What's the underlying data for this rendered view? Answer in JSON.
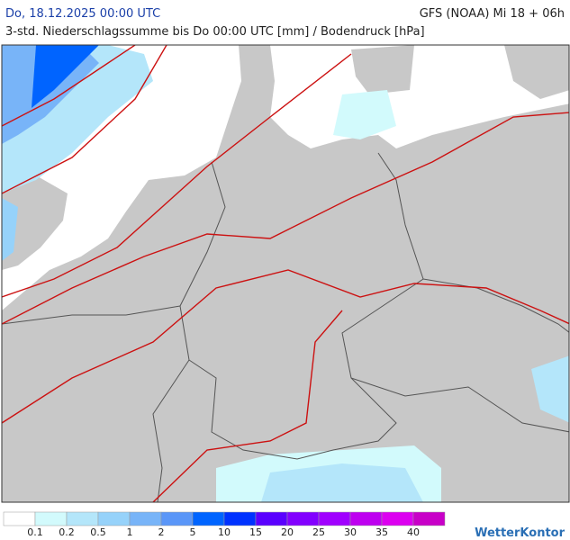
{
  "header": {
    "date": "Do, 18.12.2025 00:00 UTC",
    "model": "GFS (NOAA) Mi 18 + 06h",
    "subtitle": "3-std. Niederschlagssumme bis Do 00:00 UTC [mm] / Bodendruck [hPa]"
  },
  "legend": {
    "colors": [
      "#ffffff",
      "#d2fafc",
      "#b4e6fa",
      "#96d2fa",
      "#78b4f8",
      "#5a96f8",
      "#0064ff",
      "#0032ff",
      "#5a00ff",
      "#8200ff",
      "#a000ff",
      "#be00f0",
      "#dc00f0",
      "#c800c8"
    ],
    "labels": [
      "0.1",
      "0.2",
      "0.5",
      "1",
      "2",
      "5",
      "10",
      "15",
      "20",
      "25",
      "30",
      "35",
      "40"
    ]
  },
  "brand": "WetterKontor"
}
